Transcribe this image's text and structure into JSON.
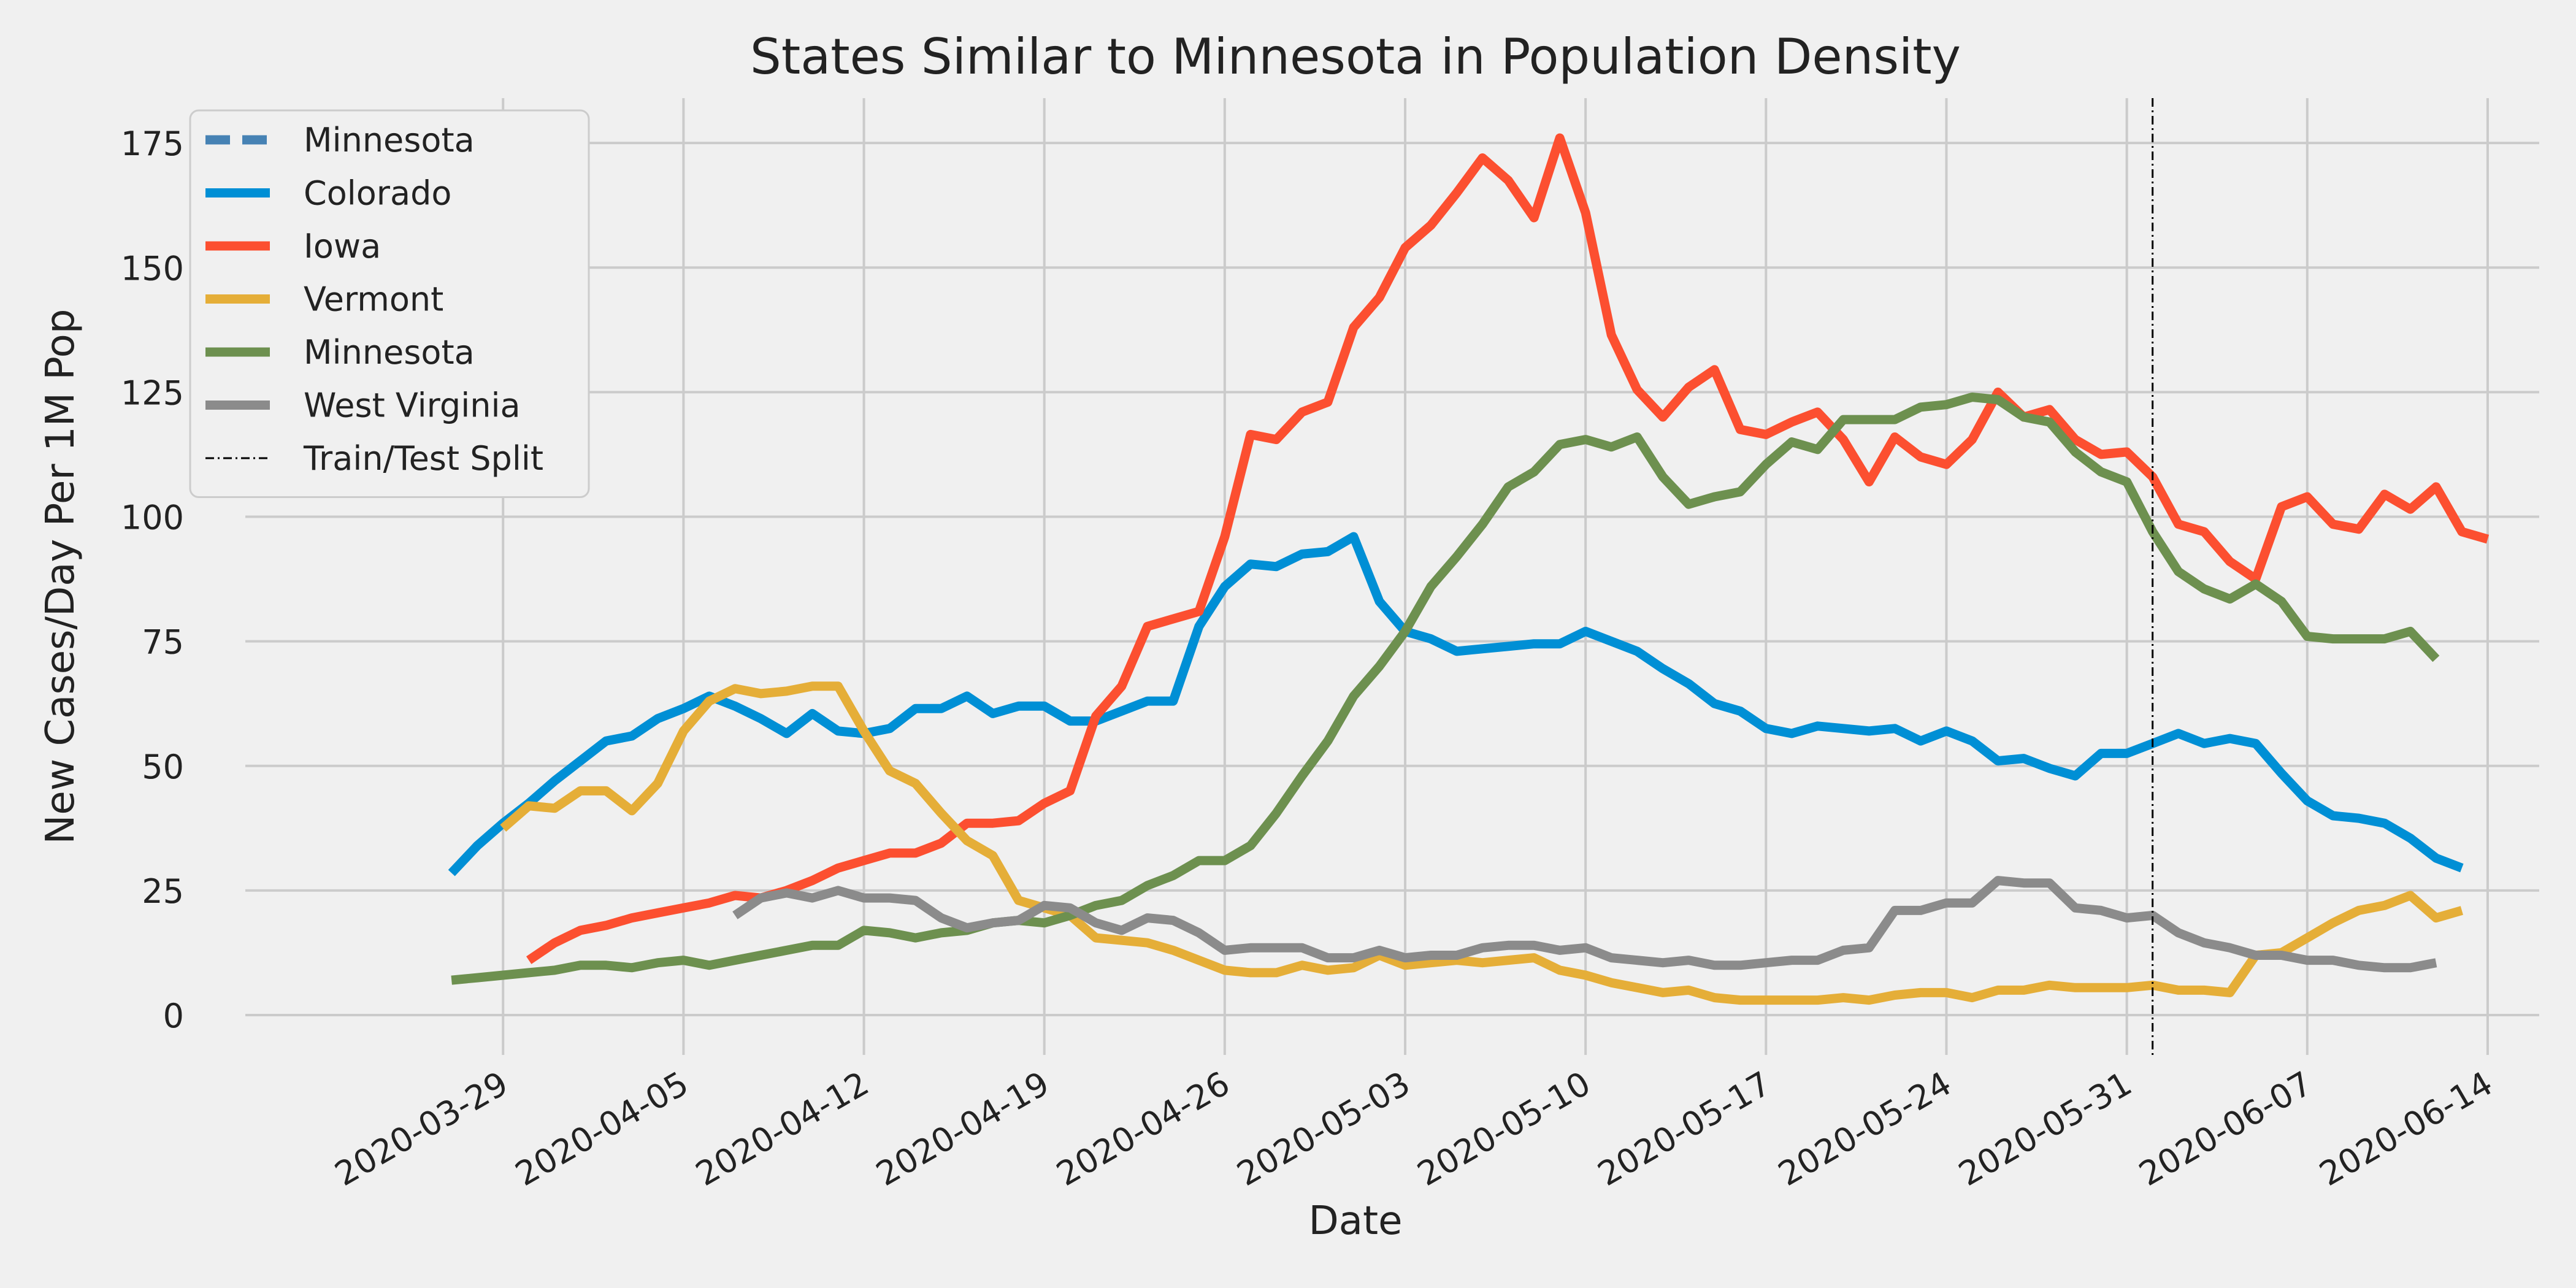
{
  "chart_data": {
    "type": "line",
    "title": "States Similar to Minnesota in Population Density",
    "xlabel": "Date",
    "ylabel": "New Cases/Day Per 1M Pop",
    "x_start": "2020-03-27",
    "xlim": [
      "2020-03-19",
      "2020-06-16"
    ],
    "ylim": [
      -8,
      184
    ],
    "x_ticks": [
      "2020-03-29",
      "2020-04-05",
      "2020-04-12",
      "2020-04-19",
      "2020-04-26",
      "2020-05-03",
      "2020-05-10",
      "2020-05-17",
      "2020-05-24",
      "2020-05-31",
      "2020-06-07",
      "2020-06-14"
    ],
    "y_ticks": [
      0,
      25,
      50,
      75,
      100,
      125,
      150,
      175
    ],
    "grid": true,
    "legend_position": "top-left",
    "split": {
      "date": "2020-06-01",
      "label": "Train/Test Split",
      "color": "#000000"
    },
    "series": [
      {
        "name": "Minnesota",
        "color": "#4682b4",
        "dashed": true,
        "values": []
      },
      {
        "name": "Colorado",
        "color": "#008fd5",
        "values": [
          28.5,
          34,
          38.5,
          42.5,
          47,
          51,
          55,
          56,
          59.5,
          61.5,
          64,
          62,
          59.5,
          56.5,
          60.5,
          57,
          56.5,
          57.5,
          61.5,
          61.5,
          64,
          60.5,
          62,
          62,
          59,
          59,
          61,
          63,
          63,
          78,
          86,
          90.5,
          90,
          92.5,
          93,
          96,
          83,
          77,
          75.5,
          73,
          73.5,
          74,
          74.5,
          74.5,
          77,
          75,
          73,
          69.5,
          66.5,
          62.5,
          61,
          57.5,
          56.5,
          58,
          57.5,
          57,
          57.5,
          55,
          57,
          55,
          51,
          51.5,
          49.5,
          48,
          52.5,
          52.5,
          54.5,
          56.5,
          54.5,
          55.5,
          54.5,
          48.5,
          43,
          40,
          39.5,
          38.5,
          35.5,
          31.5,
          29.5
        ]
      },
      {
        "name": "Iowa",
        "color": "#fc4f30",
        "values": [
          null,
          null,
          null,
          11,
          14.5,
          17,
          18,
          19.5,
          20.5,
          21.5,
          22.5,
          24,
          23.5,
          25,
          27,
          29.5,
          31,
          32.5,
          32.5,
          34.5,
          38.5,
          38.5,
          39,
          42.5,
          45,
          60,
          66,
          78,
          79.5,
          81,
          96,
          116.5,
          115.5,
          121,
          123,
          138,
          144,
          154,
          158.5,
          165,
          172,
          167.5,
          160,
          176,
          161,
          136.5,
          125.5,
          120,
          126,
          129.5,
          117.5,
          116.5,
          119,
          121,
          115.5,
          107,
          116,
          112,
          110.5,
          115.5,
          125,
          120,
          121.5,
          115.5,
          112.5,
          113,
          108,
          98.5,
          97,
          91,
          87.5,
          102,
          104,
          98.5,
          97.5,
          104.5,
          101.5,
          106,
          97,
          95.5
        ]
      },
      {
        "name": "Vermont",
        "color": "#e5ae38",
        "values": [
          null,
          null,
          37.5,
          42,
          41.5,
          45,
          45,
          41,
          46.5,
          57,
          63,
          65.5,
          64.5,
          65,
          66,
          66,
          57,
          49,
          46.5,
          40.5,
          35,
          32,
          23,
          21.5,
          20,
          15.5,
          15,
          14.5,
          13,
          11,
          9,
          8.5,
          8.5,
          10,
          9,
          9.5,
          12,
          10,
          10.5,
          11,
          10.5,
          11,
          11.5,
          9,
          8,
          6.5,
          5.5,
          4.5,
          5,
          3.5,
          3,
          3,
          3,
          3,
          3.5,
          3,
          4,
          4.5,
          4.5,
          3.5,
          5,
          5,
          6,
          5.5,
          5.5,
          5.5,
          6,
          5,
          5,
          4.5,
          12,
          12.5,
          15.5,
          18.5,
          21,
          22,
          24,
          19.5,
          21
        ]
      },
      {
        "name": "Minnesota",
        "color": "#6d904f",
        "values": [
          7,
          7.5,
          8,
          8.5,
          9,
          10,
          10,
          9.5,
          10.5,
          11,
          10,
          11,
          12,
          13,
          14,
          14,
          17,
          16.5,
          15.5,
          16.5,
          17,
          18.5,
          19,
          18.5,
          20,
          22,
          23,
          26,
          28,
          31,
          31,
          34,
          40.5,
          48,
          55,
          64,
          70,
          77,
          86,
          92,
          98.5,
          106,
          109,
          114.5,
          115.5,
          114,
          116,
          108,
          102.5,
          104,
          105,
          110.5,
          115,
          113.5,
          119.5,
          119.5,
          119.5,
          122,
          122.5,
          124,
          123.5,
          120,
          119,
          113,
          109,
          107,
          97,
          89,
          85.5,
          83.5,
          86.5,
          83,
          76,
          75.5,
          75.5,
          75.5,
          77,
          71.5
        ]
      },
      {
        "name": "West Virginia",
        "color": "#8b8b8b",
        "values": [
          null,
          null,
          null,
          null,
          null,
          null,
          null,
          null,
          null,
          null,
          null,
          20,
          23.5,
          24.5,
          23.5,
          25,
          23.5,
          23.5,
          23,
          19.5,
          17.5,
          18.5,
          19,
          22,
          21.5,
          18.5,
          17,
          19.5,
          19,
          16.5,
          13,
          13.5,
          13.5,
          13.5,
          11.5,
          11.5,
          13,
          11.5,
          12,
          12,
          13.5,
          14,
          14,
          13,
          13.5,
          11.5,
          11,
          10.5,
          11,
          10,
          10,
          10.5,
          11,
          11,
          13,
          13.5,
          21,
          21,
          22.5,
          22.5,
          27,
          26.5,
          26.5,
          21.5,
          21,
          19.5,
          20,
          16.5,
          14.5,
          13.5,
          12,
          12,
          11,
          11,
          10,
          9.5,
          9.5,
          10.5
        ]
      }
    ]
  }
}
